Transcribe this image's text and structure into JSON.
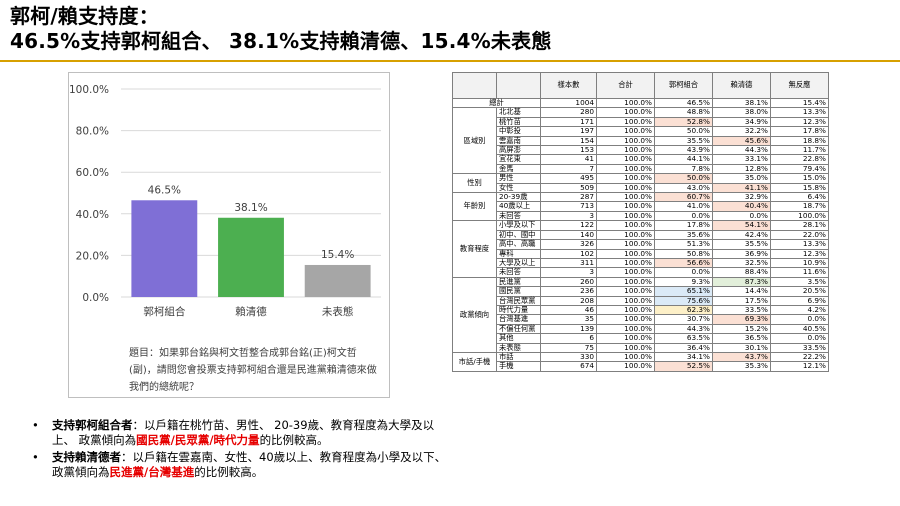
{
  "title": {
    "line1": "郭柯/賴支持度：",
    "line2": "46.5%支持郭柯組合、 38.1%支持賴清德、15.4%未表態"
  },
  "chart_data": {
    "type": "bar",
    "categories": [
      "郭柯組合",
      "賴清德",
      "未表態"
    ],
    "values": [
      46.5,
      38.1,
      15.4
    ],
    "value_labels": [
      "46.5%",
      "38.1%",
      "15.4%"
    ],
    "colors": [
      "#7f6fd6",
      "#4caf50",
      "#a6a6a6"
    ],
    "ylim": [
      0,
      100
    ],
    "yticks": [
      "0.0%",
      "20.0%",
      "40.0%",
      "60.0%",
      "80.0%",
      "100.0%"
    ],
    "grid": true
  },
  "chart_note": "題目：如果郭台銘與柯文哲整合成郭台銘(正)柯文哲(副)，請問您會投票支持郭柯組合還是民進黨賴清德來做我們的總統呢？",
  "bullets": [
    {
      "lead": "支持郭柯組合者",
      "text1": "：以戶籍在桃竹苗、男性、 20-39歲、教育程度為大學及以上、 政黨傾向為",
      "highlight": "國民黨/民眾黨/時代力量",
      "text2": "的比例較高。"
    },
    {
      "lead": "支持賴清德者",
      "text1": "：以戶籍在雲嘉南、女性、40歲以上、教育程度為小學及以下、 政黨傾向為",
      "highlight": "民進黨/台灣基進",
      "text2": "的比例較高。"
    }
  ],
  "table": {
    "headers": [
      "樣本數",
      "合計",
      "郭柯組合",
      "賴清德",
      "無反應"
    ],
    "total_label": "總計",
    "total": [
      "1004",
      "100.0%",
      "46.5%",
      "38.1%",
      "15.4%"
    ],
    "groups": [
      {
        "label": "區域別",
        "rows": [
          {
            "name": "北北基",
            "vals": [
              "280",
              "100.0%",
              "48.8%",
              "38.0%",
              "13.3%"
            ],
            "hl": [
              "",
              "",
              "",
              "",
              ""
            ]
          },
          {
            "name": "桃竹苗",
            "vals": [
              "171",
              "100.0%",
              "52.8%",
              "34.9%",
              "12.3%"
            ],
            "hl": [
              "",
              "",
              "pink",
              "",
              ""
            ]
          },
          {
            "name": "中彰投",
            "vals": [
              "197",
              "100.0%",
              "50.0%",
              "32.2%",
              "17.8%"
            ],
            "hl": [
              "",
              "",
              "",
              "",
              ""
            ]
          },
          {
            "name": "雲嘉南",
            "vals": [
              "154",
              "100.0%",
              "35.5%",
              "45.6%",
              "18.8%"
            ],
            "hl": [
              "",
              "",
              "",
              "pink",
              ""
            ]
          },
          {
            "name": "高屏澎",
            "vals": [
              "153",
              "100.0%",
              "43.9%",
              "44.3%",
              "11.7%"
            ],
            "hl": [
              "",
              "",
              "",
              "",
              ""
            ]
          },
          {
            "name": "宜花東",
            "vals": [
              "41",
              "100.0%",
              "44.1%",
              "33.1%",
              "22.8%"
            ],
            "hl": [
              "",
              "",
              "",
              "",
              ""
            ]
          },
          {
            "name": "金馬",
            "vals": [
              "7",
              "100.0%",
              "7.8%",
              "12.8%",
              "79.4%"
            ],
            "hl": [
              "",
              "",
              "",
              "",
              ""
            ]
          }
        ]
      },
      {
        "label": "性別",
        "rows": [
          {
            "name": "男性",
            "vals": [
              "495",
              "100.0%",
              "50.0%",
              "35.0%",
              "15.0%"
            ],
            "hl": [
              "",
              "",
              "pink",
              "",
              ""
            ]
          },
          {
            "name": "女性",
            "vals": [
              "509",
              "100.0%",
              "43.0%",
              "41.1%",
              "15.8%"
            ],
            "hl": [
              "",
              "",
              "",
              "pink",
              ""
            ]
          }
        ]
      },
      {
        "label": "年齡別",
        "rows": [
          {
            "name": "20-39歲",
            "vals": [
              "287",
              "100.0%",
              "60.7%",
              "32.9%",
              "6.4%"
            ],
            "hl": [
              "",
              "",
              "pink",
              "",
              ""
            ]
          },
          {
            "name": "40歲以上",
            "vals": [
              "713",
              "100.0%",
              "41.0%",
              "40.4%",
              "18.7%"
            ],
            "hl": [
              "",
              "",
              "",
              "pink",
              ""
            ]
          },
          {
            "name": "未回答",
            "vals": [
              "3",
              "100.0%",
              "0.0%",
              "0.0%",
              "100.0%"
            ],
            "hl": [
              "",
              "",
              "",
              "",
              ""
            ]
          }
        ]
      },
      {
        "label": "教育程度",
        "rows": [
          {
            "name": "小學及以下",
            "vals": [
              "122",
              "100.0%",
              "17.8%",
              "54.1%",
              "28.1%"
            ],
            "hl": [
              "",
              "",
              "",
              "pink",
              ""
            ]
          },
          {
            "name": "初中、國中",
            "vals": [
              "140",
              "100.0%",
              "35.6%",
              "42.4%",
              "22.0%"
            ],
            "hl": [
              "",
              "",
              "",
              "",
              ""
            ]
          },
          {
            "name": "高中、高職",
            "vals": [
              "326",
              "100.0%",
              "51.3%",
              "35.5%",
              "13.3%"
            ],
            "hl": [
              "",
              "",
              "",
              "",
              ""
            ]
          },
          {
            "name": "專科",
            "vals": [
              "102",
              "100.0%",
              "50.8%",
              "36.9%",
              "12.3%"
            ],
            "hl": [
              "",
              "",
              "",
              "",
              ""
            ]
          },
          {
            "name": "大學及以上",
            "vals": [
              "311",
              "100.0%",
              "56.6%",
              "32.5%",
              "10.9%"
            ],
            "hl": [
              "",
              "",
              "pink",
              "",
              ""
            ]
          },
          {
            "name": "未回答",
            "vals": [
              "3",
              "100.0%",
              "0.0%",
              "88.4%",
              "11.6%"
            ],
            "hl": [
              "",
              "",
              "",
              "",
              ""
            ]
          }
        ]
      },
      {
        "label": "政黨傾向",
        "rows": [
          {
            "name": "民進黨",
            "vals": [
              "260",
              "100.0%",
              "9.3%",
              "87.3%",
              "3.5%"
            ],
            "hl": [
              "",
              "",
              "",
              "green",
              ""
            ]
          },
          {
            "name": "國民黨",
            "vals": [
              "236",
              "100.0%",
              "65.1%",
              "14.4%",
              "20.5%"
            ],
            "hl": [
              "",
              "",
              "blue",
              "",
              ""
            ]
          },
          {
            "name": "台灣民眾黨",
            "vals": [
              "208",
              "100.0%",
              "75.6%",
              "17.5%",
              "6.9%"
            ],
            "hl": [
              "",
              "",
              "blue",
              "",
              ""
            ]
          },
          {
            "name": "時代力量",
            "vals": [
              "46",
              "100.0%",
              "62.3%",
              "33.5%",
              "4.2%"
            ],
            "hl": [
              "",
              "",
              "yellow",
              "",
              ""
            ]
          },
          {
            "name": "台灣基進",
            "vals": [
              "35",
              "100.0%",
              "30.7%",
              "69.3%",
              "0.0%"
            ],
            "hl": [
              "",
              "",
              "",
              "pink",
              ""
            ]
          },
          {
            "name": "不偏任何黨",
            "vals": [
              "139",
              "100.0%",
              "44.3%",
              "15.2%",
              "40.5%"
            ],
            "hl": [
              "",
              "",
              "",
              "",
              ""
            ]
          },
          {
            "name": "其他",
            "vals": [
              "6",
              "100.0%",
              "63.5%",
              "36.5%",
              "0.0%"
            ],
            "hl": [
              "",
              "",
              "",
              "",
              ""
            ]
          },
          {
            "name": "未表態",
            "vals": [
              "75",
              "100.0%",
              "36.4%",
              "30.1%",
              "33.5%"
            ],
            "hl": [
              "",
              "",
              "",
              "",
              ""
            ]
          }
        ]
      },
      {
        "label": "市話/手機",
        "rows": [
          {
            "name": "市話",
            "vals": [
              "330",
              "100.0%",
              "34.1%",
              "43.7%",
              "22.2%"
            ],
            "hl": [
              "",
              "",
              "",
              "pink",
              ""
            ]
          },
          {
            "name": "手機",
            "vals": [
              "674",
              "100.0%",
              "52.5%",
              "35.3%",
              "12.1%"
            ],
            "hl": [
              "",
              "",
              "pink",
              "",
              ""
            ]
          }
        ]
      }
    ]
  }
}
